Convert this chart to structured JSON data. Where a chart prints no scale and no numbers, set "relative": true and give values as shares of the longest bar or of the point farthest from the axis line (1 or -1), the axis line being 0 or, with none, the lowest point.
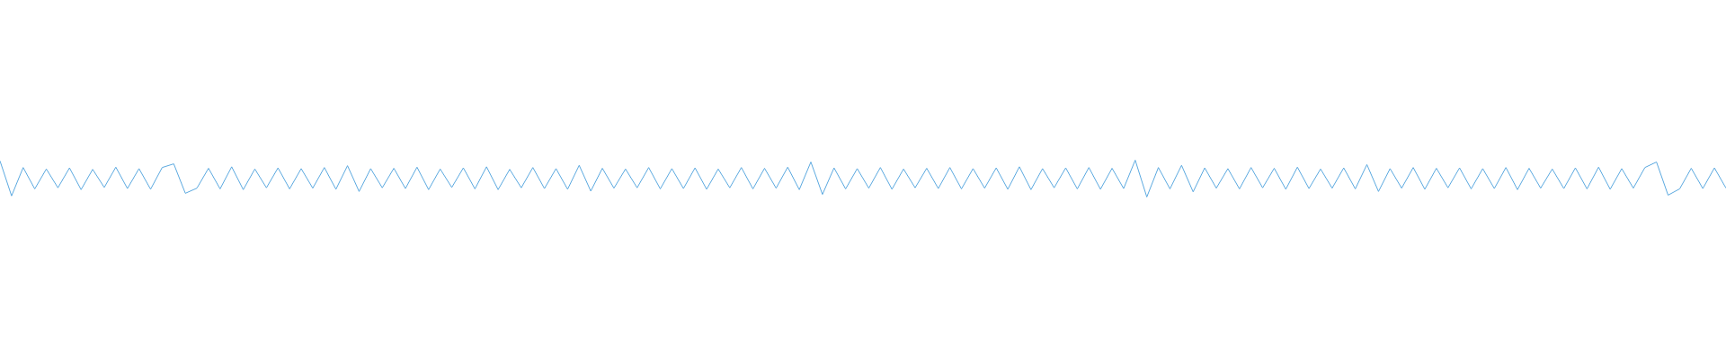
{
  "chart_data": {
    "type": "line",
    "relative": true,
    "marker": "none",
    "color": "#5ba9e0",
    "categories": [
      null,
      null,
      null,
      null,
      null,
      null,
      null,
      null,
      null,
      null,
      null,
      null,
      null,
      null,
      null,
      null,
      null,
      null,
      null,
      null,
      null,
      null,
      null,
      null,
      null,
      null,
      null,
      null,
      null,
      null,
      null,
      null,
      null,
      null,
      null,
      null,
      null,
      null,
      null,
      null,
      null,
      null,
      null,
      null,
      null,
      null,
      null,
      null,
      null,
      null,
      null,
      null,
      null,
      null,
      null,
      null,
      null,
      null,
      null,
      null,
      null,
      null,
      null,
      null,
      null,
      null,
      null,
      null,
      null,
      null,
      null,
      null,
      null,
      null,
      null,
      null,
      null,
      null,
      null,
      null,
      null,
      null,
      null,
      null,
      null,
      null,
      null,
      null,
      null,
      null,
      null,
      null,
      null,
      null,
      null,
      null,
      null,
      null,
      null,
      null,
      null,
      null,
      null,
      null,
      null,
      null,
      null,
      null,
      null,
      null,
      null,
      null,
      null,
      null,
      null,
      null,
      null,
      null,
      null,
      null,
      null,
      null,
      null,
      null,
      null,
      null,
      null,
      null,
      null,
      null,
      null,
      null,
      null,
      null,
      null,
      null,
      null,
      null,
      null,
      null,
      null,
      null,
      null,
      null,
      null,
      null,
      null,
      null,
      null,
      null
    ],
    "values": [
      0.98,
      0.03,
      0.8,
      0.22,
      0.76,
      0.25,
      0.79,
      0.2,
      0.75,
      0.26,
      0.81,
      0.23,
      0.77,
      0.21,
      0.8,
      0.9,
      0.1,
      0.24,
      0.78,
      0.22,
      0.82,
      0.2,
      0.76,
      0.25,
      0.79,
      0.22,
      0.77,
      0.24,
      0.8,
      0.21,
      0.85,
      0.15,
      0.77,
      0.25,
      0.78,
      0.23,
      0.81,
      0.2,
      0.76,
      0.26,
      0.79,
      0.22,
      0.82,
      0.2,
      0.75,
      0.25,
      0.8,
      0.23,
      0.77,
      0.21,
      0.86,
      0.16,
      0.78,
      0.24,
      0.76,
      0.25,
      0.8,
      0.22,
      0.77,
      0.23,
      0.79,
      0.21,
      0.76,
      0.25,
      0.8,
      0.22,
      0.78,
      0.24,
      0.81,
      0.2,
      0.95,
      0.07,
      0.79,
      0.22,
      0.77,
      0.24,
      0.8,
      0.21,
      0.76,
      0.25,
      0.78,
      0.23,
      0.8,
      0.22,
      0.77,
      0.24,
      0.79,
      0.21,
      0.82,
      0.2,
      0.77,
      0.25,
      0.79,
      0.22,
      0.8,
      0.21,
      0.78,
      0.23,
      1,
      0,
      0.8,
      0.22,
      0.86,
      0.14,
      0.79,
      0.24,
      0.77,
      0.22,
      0.8,
      0.25,
      0.78,
      0.21,
      0.81,
      0.23,
      0.76,
      0.24,
      0.79,
      0.22,
      0.88,
      0.15,
      0.77,
      0.24,
      0.8,
      0.21,
      0.78,
      0.25,
      0.79,
      0.22,
      0.77,
      0.23,
      0.8,
      0.2,
      0.78,
      0.24,
      0.76,
      0.23,
      0.79,
      0.22,
      0.81,
      0.21,
      0.77,
      0.24,
      0.8,
      0.95,
      0.05,
      0.22,
      0.78,
      0.23,
      0.79,
      0.24
    ]
  }
}
